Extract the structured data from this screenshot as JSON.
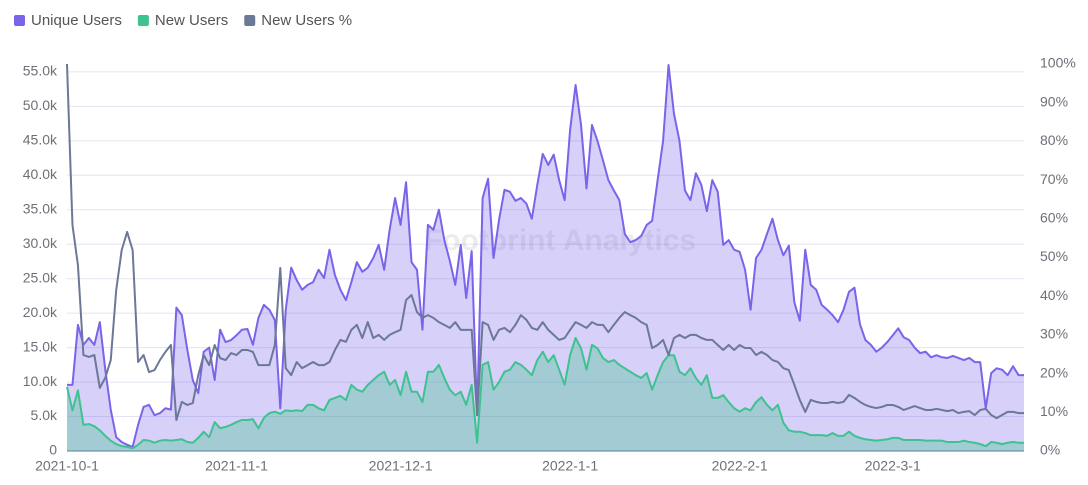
{
  "chart_data": {
    "type": "area",
    "watermark": "Footprint Analytics",
    "categories": [
      "2021-10-1",
      null,
      null,
      null,
      null,
      null,
      null,
      null,
      null,
      null,
      null,
      null,
      null,
      null,
      null,
      null,
      null,
      null,
      null,
      null,
      null,
      null,
      null,
      null,
      null,
      null,
      null,
      null,
      null,
      null,
      null,
      "2021-11-1",
      null,
      null,
      null,
      null,
      null,
      null,
      null,
      null,
      null,
      null,
      null,
      null,
      null,
      null,
      null,
      null,
      null,
      null,
      null,
      null,
      null,
      null,
      null,
      null,
      null,
      null,
      null,
      null,
      null,
      "2021-12-1",
      null,
      null,
      null,
      null,
      null,
      null,
      null,
      null,
      null,
      null,
      null,
      null,
      null,
      null,
      null,
      null,
      null,
      null,
      null,
      null,
      null,
      null,
      null,
      null,
      null,
      null,
      null,
      null,
      null,
      null,
      "2022-1-1",
      null,
      null,
      null,
      null,
      null,
      null,
      null,
      null,
      null,
      null,
      null,
      null,
      null,
      null,
      null,
      null,
      null,
      null,
      null,
      null,
      null,
      null,
      null,
      null,
      null,
      null,
      null,
      null,
      null,
      null,
      "2022-2-1",
      null,
      null,
      null,
      null,
      null,
      null,
      null,
      null,
      null,
      null,
      null,
      null,
      null,
      null,
      null,
      null,
      null,
      null,
      null,
      null,
      null,
      null,
      null,
      null,
      null,
      null,
      null,
      "2022-3-1",
      null,
      null,
      null,
      null,
      null,
      null,
      null,
      null,
      null,
      null,
      null,
      null,
      null,
      null,
      null,
      null,
      null,
      null,
      null,
      null,
      null,
      null,
      null,
      null
    ],
    "series": [
      {
        "name": "Unique Users",
        "color": "#7b63ea",
        "area": true,
        "values": [
          9600,
          9600,
          18300,
          15400,
          16400,
          15400,
          18700,
          11800,
          6000,
          2000,
          1300,
          900,
          600,
          3800,
          6400,
          6700,
          5200,
          5500,
          6200,
          6000,
          20800,
          19700,
          14700,
          10300,
          8400,
          14400,
          15000,
          10300,
          17600,
          15800,
          16100,
          16800,
          17600,
          17700,
          15400,
          19300,
          21200,
          20500,
          19000,
          6200,
          20500,
          26600,
          24800,
          23400,
          24100,
          24500,
          26300,
          25100,
          29200,
          25500,
          23400,
          21900,
          24500,
          27400,
          26000,
          26600,
          28000,
          29900,
          26300,
          32100,
          36700,
          32800,
          39000,
          27400,
          26300,
          17600,
          32800,
          32100,
          35000,
          30600,
          27600,
          24100,
          29900,
          22200,
          29000,
          5200,
          36700,
          39500,
          28000,
          33500,
          37900,
          37600,
          36300,
          36700,
          35900,
          33700,
          38600,
          43100,
          41500,
          43000,
          39300,
          36400,
          46600,
          53100,
          47300,
          38100,
          47300,
          45000,
          42200,
          39300,
          37800,
          36400,
          31500,
          30300,
          30600,
          31200,
          32800,
          33400,
          39300,
          45000,
          56000,
          48900,
          45000,
          37800,
          36400,
          40300,
          38600,
          34800,
          39300,
          37600,
          29900,
          30600,
          29200,
          28900,
          26300,
          20500,
          28000,
          29200,
          31500,
          33700,
          30600,
          28400,
          29800,
          21600,
          18900,
          29200,
          24100,
          23400,
          21200,
          20500,
          19700,
          18700,
          20500,
          23100,
          23700,
          18400,
          16100,
          15400,
          14400,
          15000,
          15800,
          16800,
          17800,
          16500,
          16100,
          15000,
          14200,
          14400,
          13600,
          13900,
          13600,
          13500,
          13800,
          13500,
          13200,
          13500,
          12900,
          12900,
          6200,
          11300,
          12000,
          11800,
          11000,
          12300,
          11000,
          11000
        ]
      },
      {
        "name": "New Users",
        "color": "#3ec28f",
        "area": true,
        "values": [
          9300,
          5900,
          8800,
          3800,
          3900,
          3600,
          3000,
          2200,
          1500,
          1000,
          700,
          600,
          400,
          900,
          1600,
          1500,
          1200,
          1500,
          1600,
          1500,
          1600,
          1700,
          1300,
          1200,
          1900,
          2800,
          2000,
          4200,
          3300,
          3500,
          3800,
          4200,
          4500,
          4500,
          4600,
          3300,
          4800,
          5500,
          5700,
          5400,
          5900,
          5800,
          5900,
          5800,
          6700,
          6700,
          6200,
          5900,
          7400,
          7700,
          8000,
          7400,
          9600,
          8900,
          8600,
          9600,
          10300,
          11000,
          11500,
          9600,
          10300,
          8100,
          11500,
          8600,
          8600,
          7100,
          11500,
          11500,
          12500,
          10600,
          8900,
          8100,
          8600,
          6700,
          9600,
          1200,
          12500,
          12900,
          8900,
          10000,
          11500,
          11800,
          12900,
          12500,
          11800,
          11000,
          13200,
          14400,
          12900,
          13900,
          11800,
          9600,
          13900,
          16400,
          14900,
          11800,
          15400,
          14900,
          13500,
          12900,
          13200,
          12500,
          12000,
          11500,
          11000,
          10600,
          11300,
          8900,
          11000,
          12900,
          13900,
          13900,
          11500,
          11000,
          12000,
          10600,
          9600,
          11000,
          7700,
          7700,
          8100,
          7100,
          6200,
          5700,
          6200,
          5900,
          7100,
          7800,
          6700,
          5900,
          6700,
          4100,
          3000,
          2800,
          2800,
          2600,
          2300,
          2300,
          2300,
          2200,
          2600,
          2200,
          2200,
          2800,
          2200,
          1900,
          1700,
          1600,
          1500,
          1600,
          1700,
          1900,
          1900,
          1600,
          1600,
          1600,
          1600,
          1500,
          1500,
          1500,
          1500,
          1300,
          1300,
          1300,
          1500,
          1300,
          1200,
          1000,
          700,
          1300,
          1200,
          1000,
          1200,
          1300,
          1200,
          1200
        ]
      },
      {
        "name": "New Users %",
        "color": "#6b7897",
        "axis": "y2",
        "values": [
          100,
          58.4,
          48,
          24.8,
          24.3,
          24.8,
          16.3,
          18.9,
          23.5,
          41.6,
          51.9,
          56.6,
          51.9,
          23,
          24.8,
          20.4,
          20.9,
          23.5,
          25.6,
          27.4,
          8,
          12.7,
          11.9,
          12.4,
          19.6,
          24.8,
          22.2,
          27.4,
          24,
          23.5,
          25.3,
          24.8,
          26.1,
          26.1,
          25.6,
          22.2,
          22.2,
          22.2,
          27.4,
          47.3,
          21.4,
          19.6,
          23,
          21.4,
          22.2,
          23,
          22.2,
          22.2,
          23,
          26.1,
          28.7,
          28.2,
          31.3,
          32.6,
          29.2,
          33.3,
          29.2,
          30,
          28.7,
          30,
          30.7,
          31.3,
          39,
          40.3,
          35.9,
          34.4,
          35.1,
          34.4,
          33.3,
          32.6,
          31.8,
          33.3,
          31.3,
          31.3,
          31.3,
          9.3,
          33.3,
          32.6,
          28.7,
          31.3,
          31.8,
          30.7,
          32.6,
          35.1,
          33.9,
          31.8,
          31.3,
          33.3,
          31.3,
          30,
          28.7,
          29.2,
          31.3,
          33.3,
          32.6,
          31.8,
          33.3,
          32.6,
          32.6,
          30.7,
          32.6,
          34.4,
          35.9,
          35.1,
          34.4,
          33.3,
          32.6,
          26.6,
          27.4,
          28.7,
          24.8,
          29.2,
          30,
          29.2,
          30,
          30,
          29.2,
          28.7,
          28.7,
          27.4,
          26.1,
          27.4,
          26.1,
          27.4,
          26.6,
          26.6,
          24.8,
          25.6,
          24.8,
          23.5,
          23,
          21.4,
          20.9,
          17.1,
          13.2,
          10.1,
          13.2,
          12.7,
          12.4,
          12.4,
          12.7,
          12.4,
          12.7,
          14.5,
          13.7,
          12.7,
          11.9,
          11.4,
          11.1,
          11.4,
          11.9,
          11.9,
          11.4,
          10.6,
          11.1,
          11.6,
          11.1,
          10.6,
          10.6,
          10.9,
          10.6,
          10.3,
          10.6,
          9.8,
          10.1,
          10.3,
          9.3,
          10.6,
          10.9,
          9.3,
          8.5,
          9.3,
          10.1,
          10.1,
          9.8,
          9.8
        ]
      }
    ],
    "ylim": [
      0,
      56150
    ],
    "yticks": [
      0,
      {
        "value": 5000,
        "label": "5.0k"
      },
      {
        "value": 10000,
        "label": "10.0k"
      },
      {
        "value": 15000,
        "label": "15.0k"
      },
      {
        "value": 20000,
        "label": "20.0k"
      },
      {
        "value": 25000,
        "label": "25.0k"
      },
      {
        "value": 30000,
        "label": "30.0k"
      },
      {
        "value": 35000,
        "label": "35.0k"
      },
      {
        "value": 40000,
        "label": "40.0k"
      },
      {
        "value": 45000,
        "label": "45.0k"
      },
      {
        "value": 50000,
        "label": "50.0k"
      },
      {
        "value": 55000,
        "label": "55.0k"
      }
    ],
    "y2lim": [
      0,
      100
    ],
    "y2ticks": [
      {
        "value": 0,
        "label": "0%"
      },
      {
        "value": 10,
        "label": "10%"
      },
      {
        "value": 20,
        "label": "20%"
      },
      {
        "value": 30,
        "label": "30%"
      },
      {
        "value": 40,
        "label": "40%"
      },
      {
        "value": 50,
        "label": "50%"
      },
      {
        "value": 60,
        "label": "60%"
      },
      {
        "value": 70,
        "label": "70%"
      },
      {
        "value": 80,
        "label": "80%"
      },
      {
        "value": 90,
        "label": "90%"
      },
      {
        "value": 100,
        "label": "100%"
      }
    ],
    "grid": true,
    "legend": "top-left"
  }
}
